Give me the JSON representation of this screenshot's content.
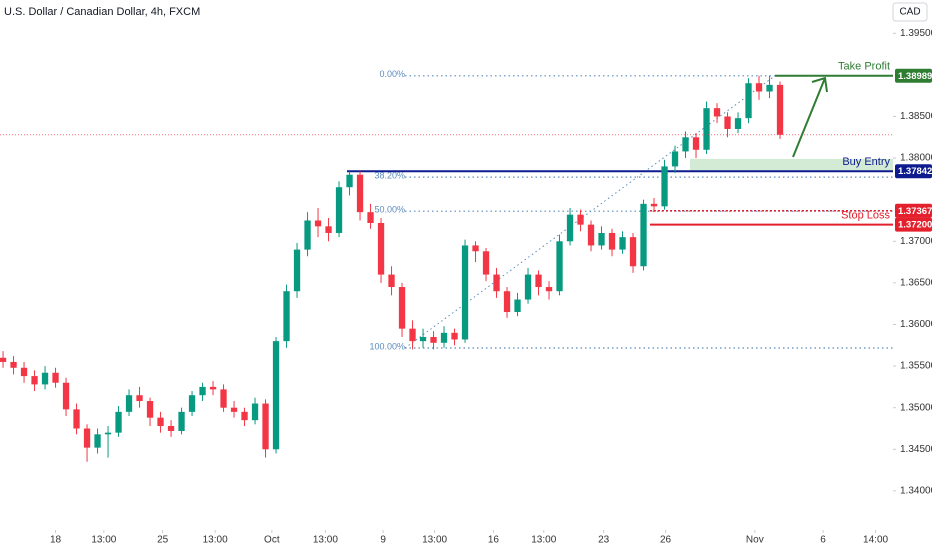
{
  "chart_data": {
    "type": "candlestick",
    "title": "U.S. Dollar / Canadian Dollar, 4h, FXCM",
    "currency": "CAD",
    "up_color": "#089981",
    "down_color": "#f23645",
    "open": [
      1.356,
      1.3555,
      1.3548,
      1.3538,
      1.3528,
      1.3542,
      1.353,
      1.3498,
      1.3475,
      1.3452,
      1.3468,
      1.347,
      1.3495,
      1.3515,
      1.3508,
      1.3488,
      1.3478,
      1.3472,
      1.3495,
      1.3515,
      1.3525,
      1.3522,
      1.35,
      1.3495,
      1.3485,
      1.3505,
      1.345,
      1.358,
      1.364,
      1.369,
      1.3725,
      1.3718,
      1.371,
      1.3765,
      1.378,
      1.3735,
      1.3722,
      1.366,
      1.3645,
      1.3595,
      1.358,
      1.3585,
      1.3578,
      1.359,
      1.3582,
      1.3695,
      1.3688,
      1.366,
      1.364,
      1.3615,
      1.363,
      1.366,
      1.3645,
      1.364,
      1.37,
      1.3732,
      1.372,
      1.3695,
      1.371,
      1.369,
      1.3705,
      1.367,
      1.3745,
      1.3742,
      1.379,
      1.3808,
      1.3825,
      1.381,
      1.386,
      1.385,
      1.3835,
      1.3848,
      1.389,
      1.388,
      1.3888
    ],
    "high": [
      1.3568,
      1.3562,
      1.3555,
      1.3545,
      1.355,
      1.3548,
      1.3536,
      1.3505,
      1.348,
      1.3475,
      1.3478,
      1.3502,
      1.3522,
      1.3525,
      1.3512,
      1.3495,
      1.3485,
      1.35,
      1.352,
      1.353,
      1.3532,
      1.3528,
      1.3508,
      1.35,
      1.3512,
      1.351,
      1.3585,
      1.3648,
      1.3698,
      1.3735,
      1.374,
      1.3728,
      1.3772,
      1.3784,
      1.3784,
      1.3745,
      1.3728,
      1.367,
      1.365,
      1.3605,
      1.3595,
      1.3592,
      1.3598,
      1.3595,
      1.3702,
      1.37,
      1.3692,
      1.3668,
      1.3645,
      1.3638,
      1.3668,
      1.3665,
      1.3652,
      1.3708,
      1.374,
      1.3738,
      1.3725,
      1.3718,
      1.3715,
      1.3712,
      1.371,
      1.375,
      1.3752,
      1.3798,
      1.3815,
      1.3832,
      1.383,
      1.3868,
      1.3866,
      1.3855,
      1.3855,
      1.3896,
      1.3899,
      1.3899,
      1.3892
    ],
    "low": [
      1.3548,
      1.354,
      1.353,
      1.352,
      1.3522,
      1.3524,
      1.349,
      1.3468,
      1.3435,
      1.3445,
      1.344,
      1.3465,
      1.349,
      1.35,
      1.3478,
      1.347,
      1.3465,
      1.3468,
      1.349,
      1.3508,
      1.3515,
      1.3495,
      1.3488,
      1.3478,
      1.348,
      1.344,
      1.3445,
      1.3572,
      1.3632,
      1.3682,
      1.3705,
      1.37,
      1.3705,
      1.3755,
      1.3725,
      1.3715,
      1.365,
      1.3635,
      1.3585,
      1.357,
      1.3572,
      1.357,
      1.3572,
      1.3575,
      1.3578,
      1.3675,
      1.3652,
      1.3632,
      1.3608,
      1.361,
      1.3625,
      1.3635,
      1.363,
      1.3635,
      1.3695,
      1.3712,
      1.3688,
      1.369,
      1.3682,
      1.3685,
      1.3662,
      1.3665,
      1.3735,
      1.3738,
      1.3782,
      1.38,
      1.38,
      1.3805,
      1.3842,
      1.3825,
      1.383,
      1.3842,
      1.387,
      1.3872,
      1.3823
    ],
    "close": [
      1.3555,
      1.3548,
      1.3538,
      1.3528,
      1.3542,
      1.353,
      1.3498,
      1.3475,
      1.3452,
      1.3468,
      1.347,
      1.3495,
      1.3515,
      1.3508,
      1.3488,
      1.3478,
      1.3472,
      1.3495,
      1.3515,
      1.3525,
      1.3522,
      1.35,
      1.3495,
      1.3485,
      1.3505,
      1.345,
      1.358,
      1.364,
      1.369,
      1.3725,
      1.3718,
      1.371,
      1.3765,
      1.378,
      1.3735,
      1.3722,
      1.366,
      1.3645,
      1.3595,
      1.358,
      1.3585,
      1.3578,
      1.359,
      1.3582,
      1.3695,
      1.3688,
      1.366,
      1.364,
      1.3615,
      1.363,
      1.366,
      1.3645,
      1.364,
      1.37,
      1.3732,
      1.372,
      1.3695,
      1.371,
      1.369,
      1.3705,
      1.367,
      1.3745,
      1.3742,
      1.379,
      1.3808,
      1.3825,
      1.381,
      1.386,
      1.385,
      1.3835,
      1.3848,
      1.389,
      1.388,
      1.3888,
      1.3828
    ],
    "xlim": [
      -0.29,
      84.76
    ],
    "xticks": [
      {
        "value": 5,
        "label": "18"
      },
      {
        "value": 9.6,
        "label": "13:00"
      },
      {
        "value": 15.2,
        "label": "25"
      },
      {
        "value": 20.2,
        "label": "13:00"
      },
      {
        "value": 25.6,
        "label": "Oct"
      },
      {
        "value": 30.7,
        "label": "13:00"
      },
      {
        "value": 36.2,
        "label": "9"
      },
      {
        "value": 41.1,
        "label": "13:00"
      },
      {
        "value": 46.7,
        "label": "16"
      },
      {
        "value": 51.5,
        "label": "13:00"
      },
      {
        "value": 57.2,
        "label": "23"
      },
      {
        "value": 63.1,
        "label": "26"
      },
      {
        "value": 71.6,
        "label": "Nov"
      },
      {
        "value": 78.1,
        "label": "6"
      },
      {
        "value": 83.1,
        "label": "14:00"
      }
    ],
    "ylim": [
      1.3353,
      1.399
    ],
    "yticks": [
      {
        "value": 1.34,
        "label": "1.34000"
      },
      {
        "value": 1.345,
        "label": "1.34500"
      },
      {
        "value": 1.35,
        "label": "1.35000"
      },
      {
        "value": 1.355,
        "label": "1.35500"
      },
      {
        "value": 1.36,
        "label": "1.36000"
      },
      {
        "value": 1.365,
        "label": "1.36500"
      },
      {
        "value": 1.37,
        "label": "1.37000"
      },
      {
        "value": 1.38,
        "label": "1.38000"
      },
      {
        "value": 1.385,
        "label": "1.38500"
      },
      {
        "value": 1.395,
        "label": "1.39500"
      }
    ],
    "fib": [
      {
        "level": {
          "value": 0,
          "label": "0.00%"
        },
        "price": 1.38989
      },
      {
        "level": {
          "value": 38.2,
          "label": "38.20%"
        },
        "price": 1.37771
      },
      {
        "level": {
          "value": 50,
          "label": "50.00%"
        },
        "price": 1.37362
      },
      {
        "level": {
          "value": 100,
          "label": "100.00%"
        },
        "price": 1.35717
      }
    ],
    "levels": [
      {
        "name": "Take Profit",
        "value": 1.38989,
        "label": "1.38989",
        "color": "#2e7d32"
      },
      {
        "name": "Buy Entry",
        "value": 1.37842,
        "label": "1.37842",
        "color": "#0d1b8f",
        "zone": [
          1.37842,
          1.3799
        ]
      },
      {
        "name": "Stop Loss",
        "value": 1.37367,
        "label": "1.37367",
        "color": "#e3202c"
      },
      {
        "value": 1.372,
        "label": "1.37200",
        "color": "#e3202c"
      }
    ]
  }
}
